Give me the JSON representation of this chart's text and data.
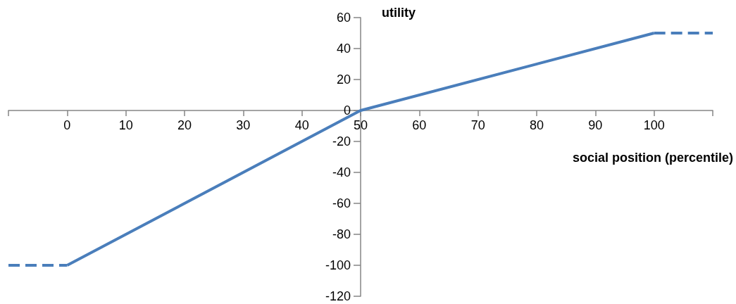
{
  "chart_data": {
    "type": "line",
    "xlabel": "social position (percentile)",
    "ylabel": "utility",
    "xlim": [
      -10,
      110
    ],
    "xticks": [
      {
        "value": -10,
        "label": null
      },
      0,
      10,
      20,
      30,
      40,
      50,
      60,
      70,
      80,
      90,
      100,
      {
        "value": 110,
        "label": null
      }
    ],
    "ylim": [
      -120,
      60
    ],
    "yticks": [
      -120,
      -100,
      -80,
      -60,
      -40,
      -20,
      0,
      20,
      40,
      60
    ],
    "series": [
      {
        "color": "#4a7ebb",
        "x": [
          0,
          50,
          100
        ],
        "values": [
          -100,
          0,
          50
        ],
        "line_style": "solid"
      },
      {
        "color": "#4a7ebb",
        "x": [
          -10,
          0,
          50,
          100,
          110
        ],
        "values": [
          -100,
          -100,
          null,
          50,
          50
        ],
        "line_style": "dashed"
      }
    ],
    "marker": "none"
  }
}
